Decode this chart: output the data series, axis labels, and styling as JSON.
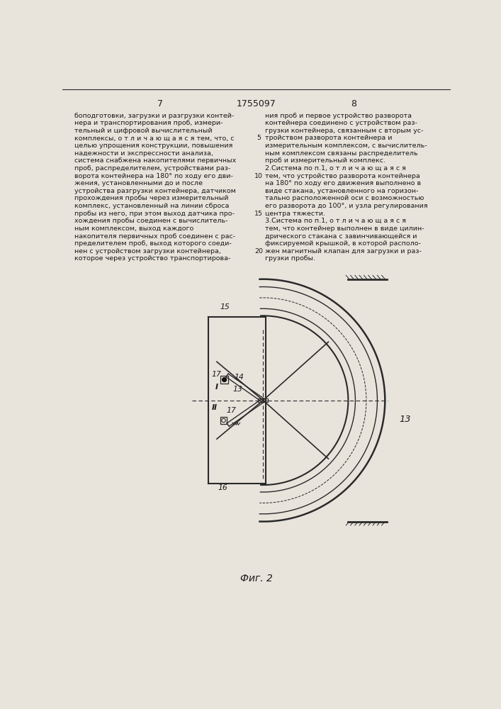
{
  "page_width": 7.07,
  "page_height": 10.0,
  "bg_color": "#e8e4dc",
  "line_color": "#2a2a2a",
  "text_color": "#1a1a1a",
  "header": {
    "left_num": "7",
    "center_num": "1755097",
    "right_num": "8"
  },
  "left_text_lines": [
    "боподготовки, загрузки и разгрузки контей-",
    "нера и транспортирования проб, измери-",
    "тельный и цифровой вычислительный",
    "комплексы, о т л и ч а ю щ а я с я тем, что, с",
    "целью упрощения конструкции, повышения",
    "надежности и экспрессности анализа,",
    "система снабжена накопителями первичных",
    "проб, распределителем, устройствами раз-",
    "ворота контейнера на 180° по ходу его дви-",
    "жения, установленными до и после",
    "устройства разгрузки контейнера, датчиком",
    "прохождения пробы через измерительный",
    "комплекс, установленный на линии сброса",
    "пробы из него, при этом выход датчика про-",
    "хождения пробы соединен с вычислитель-",
    "ным комплексом, выход каждого",
    "накопителя первичных проб соединен с рас-",
    "пределителем проб, выход которого соеди-",
    "нен с устройством загрузки контейнера,",
    "которое через устройство транспортирова-"
  ],
  "right_text_lines": [
    "ния проб и первое устройство разворота",
    "контейнера соединено с устройством раз-",
    "грузки контейнера, связанным с вторым ус-",
    "тройством разворота контейнера и",
    "измерительным комплексом, с вычислитель-",
    "ным комплексом связаны распределитель",
    "проб и измерительный комплекс.",
    "2.Система по п.1, о т л и ч а ю щ а я с я",
    "тем, что устройство разворота контейнера",
    "на 180° по ходу его движения выполнено в",
    "виде стакана, установленного на горизон-",
    "тально расположенной оси с возможностью",
    "его разворота до 100°, и узла регулирования",
    "центра тяжести.",
    "3.Система по п.1, о т л и ч а ю щ а я с я",
    "тем, что контейнер выполнен в виде цилин-",
    "дрического стакана с завинчивающейся и",
    "фиксируемой крышкой, в которой располо-",
    "жен магнитный клапан для загрузки и раз-",
    "грузки пробы."
  ],
  "fig_caption": "Фиг. 2"
}
